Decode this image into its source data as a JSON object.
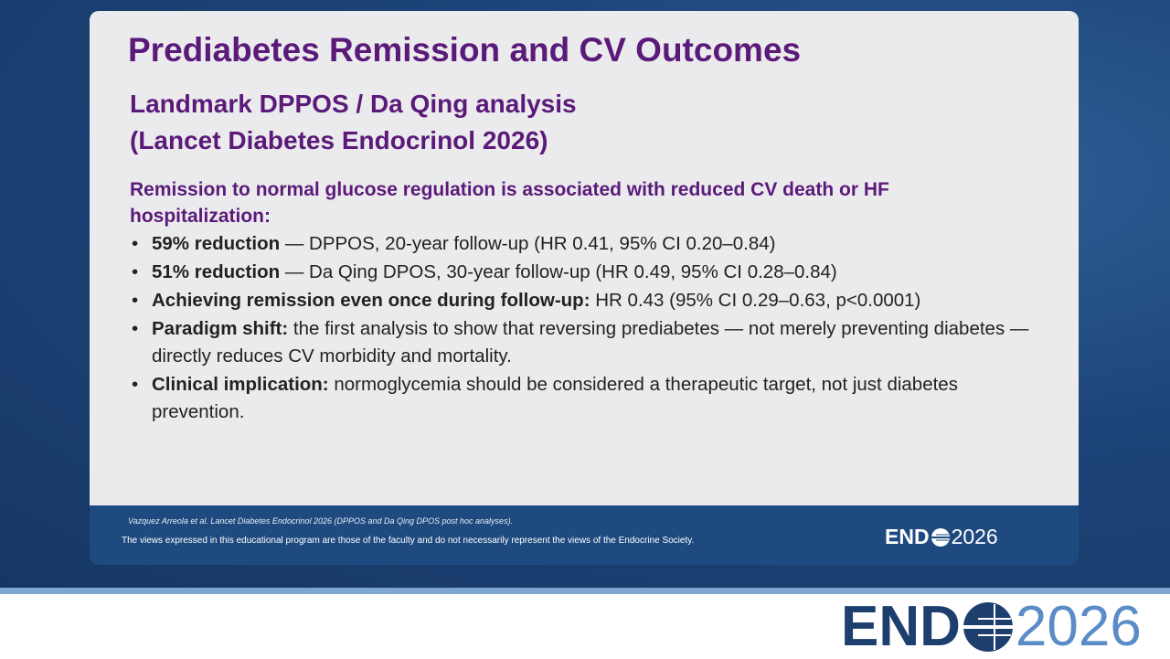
{
  "slide": {
    "title": "Prediabetes Remission and CV Outcomes",
    "subtitle_lines": [
      "Landmark DPPOS / Da Qing analysis",
      "(Lancet Diabetes Endocrinol 2026)"
    ],
    "intro": "Remission to normal glucose regulation is associated with reduced CV death or HF hospitalization:",
    "bullets": [
      {
        "lead": "59% reduction",
        "text": "— DPPOS, 20-year follow-up (HR 0.41, 95% CI 0.20–0.84)"
      },
      {
        "lead": "51% reduction",
        "text": "— Da Qing DPOS, 30-year follow-up (HR 0.49, 95% CI 0.28–0.84)"
      },
      {
        "lead": "Achieving remission even once during follow-up:",
        "text": "HR 0.43 (95% CI 0.29–0.63, p<0.0001)"
      },
      {
        "lead": "Paradigm shift:",
        "text": "the first analysis to show that reversing prediabetes — not merely preventing diabetes — directly reduces CV morbidity and mortality."
      },
      {
        "lead": "Clinical implication:",
        "text": "normoglycemia should be considered a therapeutic target, not just diabetes prevention."
      }
    ],
    "footer": {
      "citation": "Vazquez Arreola et al. Lancet Diabetes Endocrinol 2026 (DPPOS and Da Qing DPOS post hoc analyses).",
      "disclaimer": "The views expressed in this educational program are those of the faculty and do not necessarily represent the views of the Endocrine Society."
    },
    "logo": {
      "brand": "END",
      "year": "2026"
    }
  }
}
